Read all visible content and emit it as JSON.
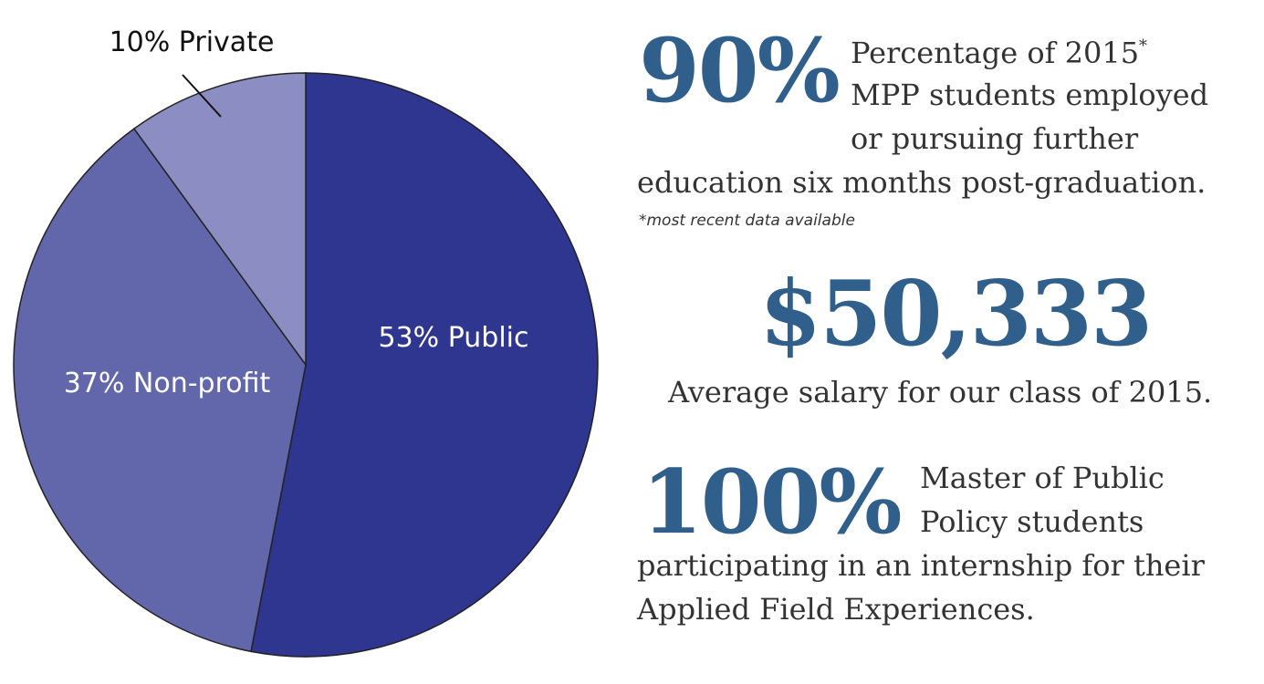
{
  "colors": {
    "public": "#2e368f",
    "nonprofit": "#6266aa",
    "private": "#8c8ec3",
    "stat_number": "#2f5f8a",
    "text": "#333333"
  },
  "chart_data": {
    "type": "pie",
    "slices": [
      {
        "label": "53% Public",
        "value": 53
      },
      {
        "label": "37% Non-profit",
        "value": 37
      },
      {
        "label": "10% Private",
        "value": 10
      }
    ]
  },
  "stats": {
    "employment": {
      "number": "90%",
      "line1": "Percentage of 2015",
      "line1_sup": "*",
      "line2": "MPP students employed",
      "line3": "or pursuing further",
      "line4": "education six months post-graduation.",
      "note": "*most recent data available"
    },
    "salary": {
      "number": "$50,333",
      "caption": "Average salary for our class of 2015."
    },
    "internship": {
      "number": "100%",
      "line1": "Master of Public",
      "line2": "Policy students",
      "line3": "participating in an internship for their",
      "line4": "Applied Field Experiences."
    }
  }
}
